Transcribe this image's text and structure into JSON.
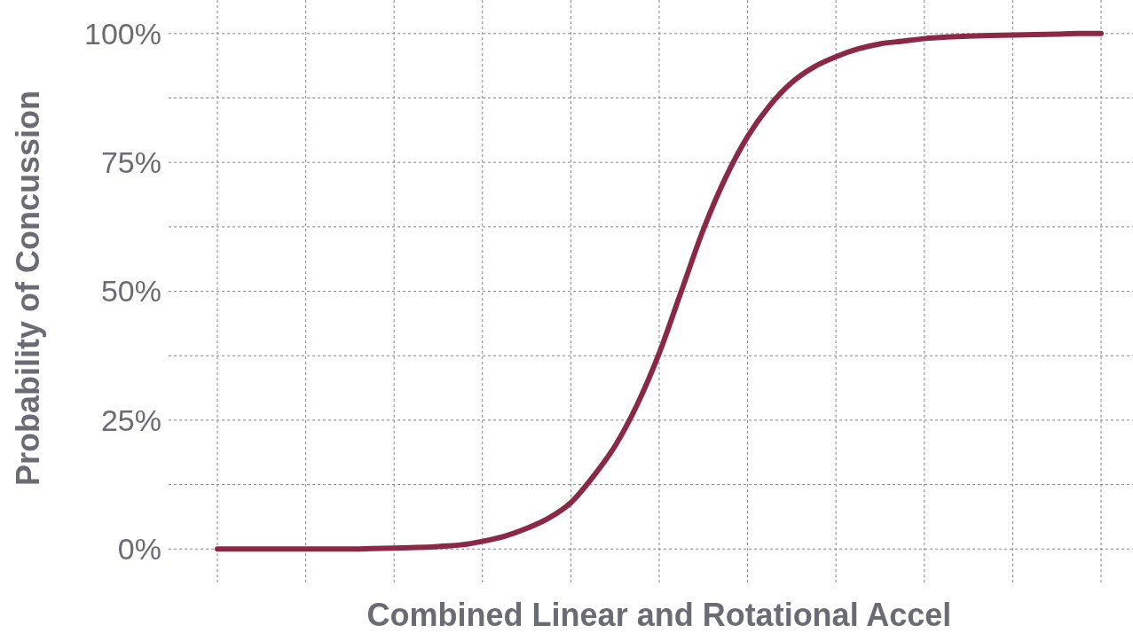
{
  "chart_data": {
    "type": "line",
    "xlabel": "Combined Linear and Rotational Accel",
    "ylabel": "Probability of Concussion",
    "categories": [
      null,
      null,
      null,
      null,
      null,
      null,
      null,
      null,
      null,
      null,
      null,
      null,
      null,
      null,
      null,
      null,
      null,
      null,
      null,
      null,
      null,
      null,
      null,
      null,
      null,
      null,
      null,
      null,
      null,
      null,
      null,
      null,
      null,
      null,
      null,
      null,
      null,
      null,
      null,
      null,
      null
    ],
    "series": [
      {
        "color": "#8b2846",
        "values": [
          0,
          0,
          0,
          0,
          0,
          0,
          0,
          0.1,
          0.2,
          0.3,
          0.5,
          0.8,
          1.5,
          2.5,
          4,
          6,
          9,
          14,
          20,
          28,
          38,
          50,
          62,
          72,
          80,
          86,
          90.5,
          93.5,
          95.5,
          97,
          98,
          98.5,
          99,
          99.3,
          99.5,
          99.6,
          99.7,
          99.8,
          99.9,
          100,
          100
        ]
      }
    ],
    "ylim": [
      -7,
      106.5
    ],
    "yticks": [
      {
        "value": 0,
        "label": "0%"
      },
      {
        "value": 12.5,
        "label": null
      },
      {
        "value": 25,
        "label": "25%"
      },
      {
        "value": 37.5,
        "label": null
      },
      {
        "value": 50,
        "label": "50%"
      },
      {
        "value": 62.5,
        "label": null
      },
      {
        "value": 75,
        "label": "75%"
      },
      {
        "value": 87.5,
        "label": null
      },
      {
        "value": 100,
        "label": "100%"
      }
    ],
    "grid": true,
    "line_style": "solid",
    "marker": "none"
  }
}
